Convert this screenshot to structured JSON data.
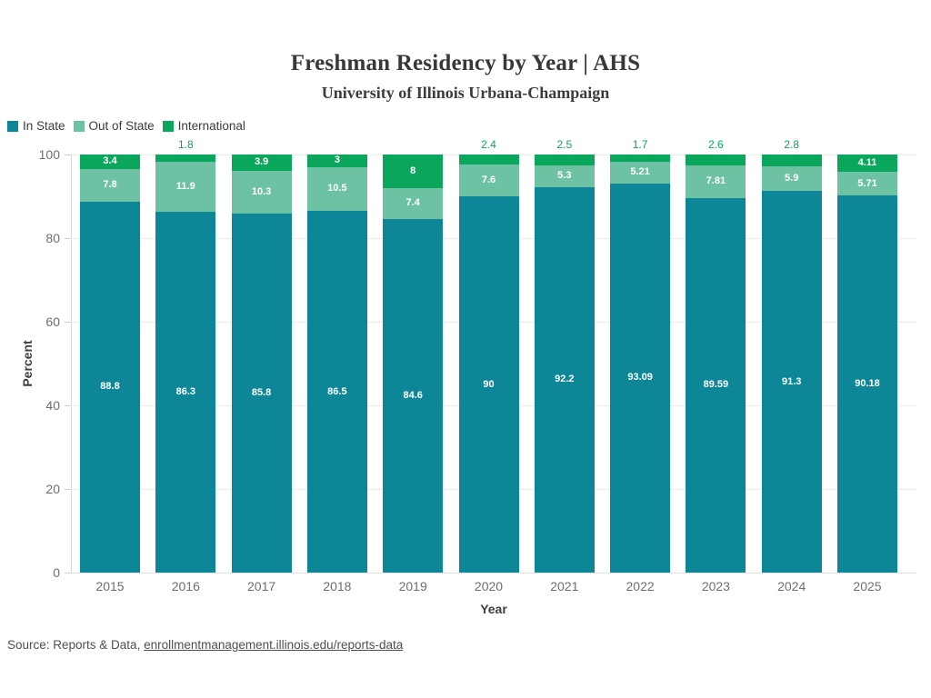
{
  "page": {
    "title": "Freshman Residency by Year | AHS",
    "subtitle": "University of Illinois Urbana-Champaign",
    "source_prefix": "Source: Reports & Data, ",
    "source_link": "enrollmentmanagement.illinois.edu/reports-data"
  },
  "legend": {
    "items": [
      {
        "label": "In State",
        "color": "#0d8698"
      },
      {
        "label": "Out of State",
        "color": "#6cc2a3"
      },
      {
        "label": "International",
        "color": "#0aa65c"
      }
    ]
  },
  "chart_data": {
    "type": "bar",
    "stacked": true,
    "title": "Freshman Residency by Year | AHS",
    "subtitle": "University of Illinois Urbana-Champaign",
    "categories": [
      "2015",
      "2016",
      "2017",
      "2018",
      "2019",
      "2020",
      "2021",
      "2022",
      "2023",
      "2024",
      "2025"
    ],
    "series": [
      {
        "name": "In State",
        "color": "#0d8698",
        "values": [
          88.8,
          86.3,
          85.8,
          86.5,
          84.6,
          90,
          92.2,
          93.09,
          89.59,
          91.3,
          90.18
        ]
      },
      {
        "name": "Out of State",
        "color": "#6cc2a3",
        "values": [
          7.8,
          11.9,
          10.3,
          10.5,
          7.4,
          7.6,
          5.3,
          5.21,
          7.81,
          5.9,
          5.71
        ]
      },
      {
        "name": "International",
        "color": "#0aa65c",
        "values": [
          3.4,
          1.8,
          3.9,
          3,
          8,
          2.4,
          2.5,
          1.7,
          2.6,
          2.8,
          4.11
        ]
      }
    ],
    "xlabel": "Year",
    "ylabel": "Percent",
    "ylim": [
      0,
      100
    ],
    "yticks": [
      0,
      20,
      40,
      60,
      80,
      100
    ],
    "grid": true,
    "legend_position": "top-left",
    "bar_label_color": "#ffffff",
    "outside_label_threshold": 3,
    "outside_label_color": "#0aa65c"
  }
}
